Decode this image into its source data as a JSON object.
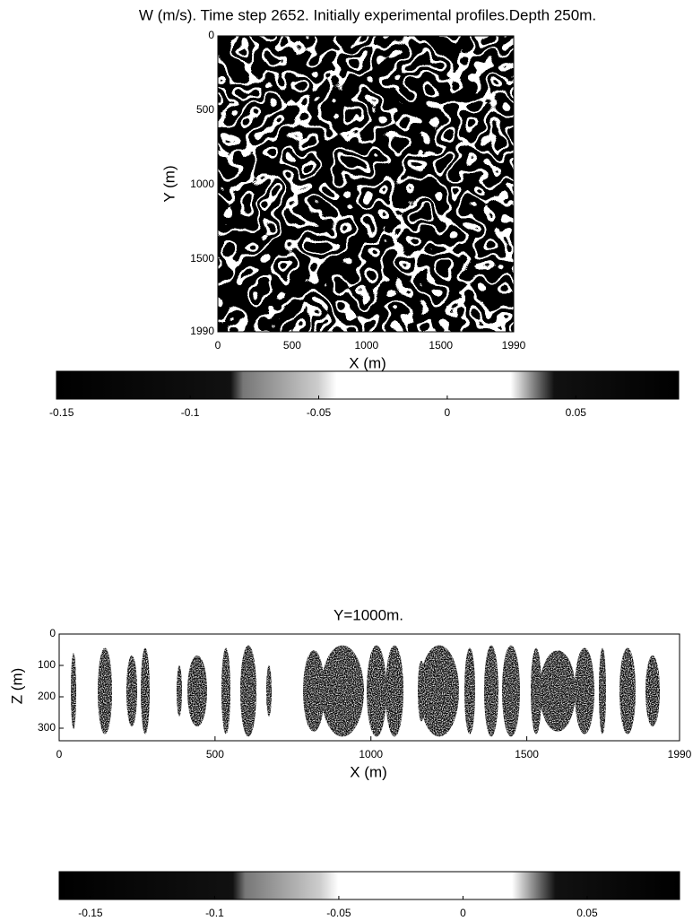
{
  "chart_data": [
    {
      "type": "heatmap",
      "title": "W (m/s). Time step 2652. Initially experimental profiles.Depth 250m.",
      "x_label": "X (m)",
      "y_label": "Y (m)",
      "xlim": [
        0,
        1990
      ],
      "ylim": [
        0,
        1990
      ],
      "y_inverted": true,
      "xticks": [
        0,
        500,
        1000,
        1500,
        1990
      ],
      "yticks": [
        0,
        500,
        1000,
        1500,
        1990
      ]
    },
    {
      "type": "colorbar",
      "xlim": [
        -0.152,
        0.09
      ],
      "xticks": [
        -0.15,
        -0.1,
        -0.05,
        0,
        0.05
      ]
    },
    {
      "type": "heatmap",
      "title": "Y=1000m.",
      "x_label": "X (m)",
      "y_label": "Z (m)",
      "xlim": [
        0,
        1990
      ],
      "ylim": [
        0,
        340
      ],
      "y_inverted": true,
      "xticks": [
        0,
        500,
        1000,
        1500,
        1990
      ],
      "yticks": [
        0,
        100,
        200,
        300
      ]
    },
    {
      "type": "colorbar",
      "xlim": [
        -0.1626,
        0.0872
      ],
      "xticks": [
        -0.15,
        -0.1,
        -0.05,
        0,
        0.05
      ]
    }
  ]
}
